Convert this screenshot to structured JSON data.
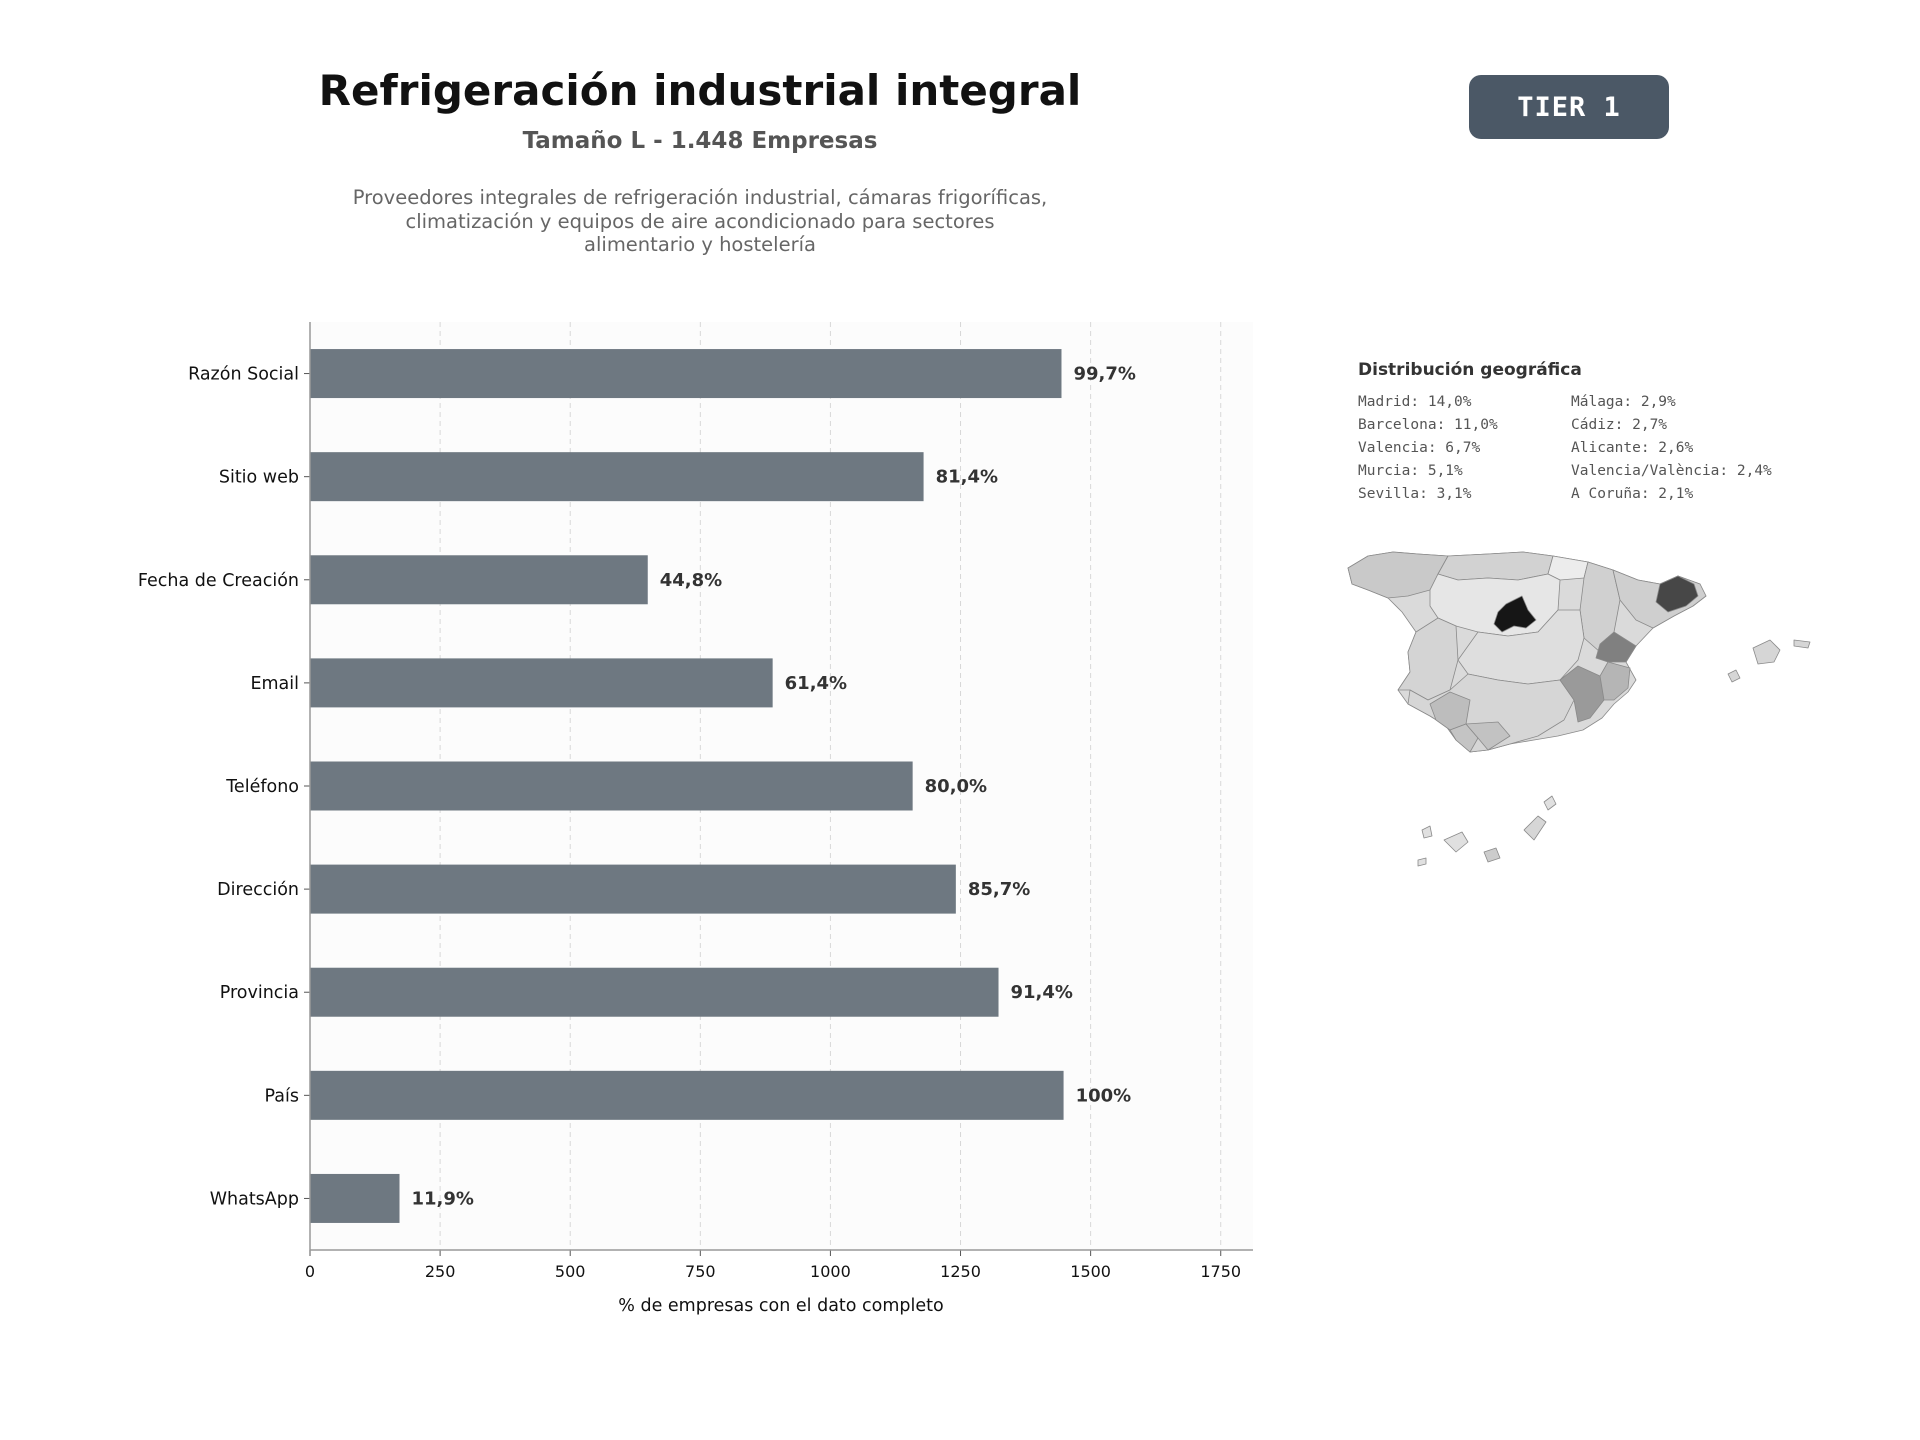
{
  "header": {
    "title": "Refrigeración industrial integral",
    "subtitle": "Tamaño L - 1.448 Empresas",
    "description": "Proveedores integrales de refrigeración industrial, cámaras frigoríficas, climatización y equipos de aire acondicionado para sectores alimentario y hostelería",
    "tier_label": "TIER 1"
  },
  "geo": {
    "title": "Distribución geográfica",
    "items": [
      "Madrid: 14,0%",
      "Málaga: 2,9%",
      "Barcelona: 11,0%",
      "Cádiz: 2,7%",
      "Valencia: 6,7%",
      "Alicante: 2,6%",
      "Murcia: 5,1%",
      "Valencia/València: 2,4%",
      "Sevilla: 3,1%",
      "A Coruña: 2,1%"
    ]
  },
  "colors": {
    "bar": "#6e7881",
    "tier_badge": "#4b5866",
    "map_madrid": "#161616",
    "map_barcelona": "#474747",
    "map_valencia": "#808080"
  },
  "chart_data": {
    "type": "bar",
    "orientation": "horizontal",
    "categories": [
      "Razón Social",
      "Sitio web",
      "Fecha de Creación",
      "Email",
      "Teléfono",
      "Dirección",
      "Provincia",
      "País",
      "WhatsApp"
    ],
    "values": [
      1444,
      1179,
      649,
      889,
      1158,
      1241,
      1323,
      1448,
      172
    ],
    "data_labels": [
      "99,7%",
      "81,4%",
      "44,8%",
      "61,4%",
      "80,0%",
      "85,7%",
      "91,4%",
      "100%",
      "11,9%"
    ],
    "xlabel": "% de empresas con el dato completo",
    "xlim": [
      0,
      1812
    ],
    "xticks": [
      0,
      250,
      500,
      750,
      1000,
      1250,
      1500,
      1750
    ],
    "grid": "vertical dashed"
  }
}
